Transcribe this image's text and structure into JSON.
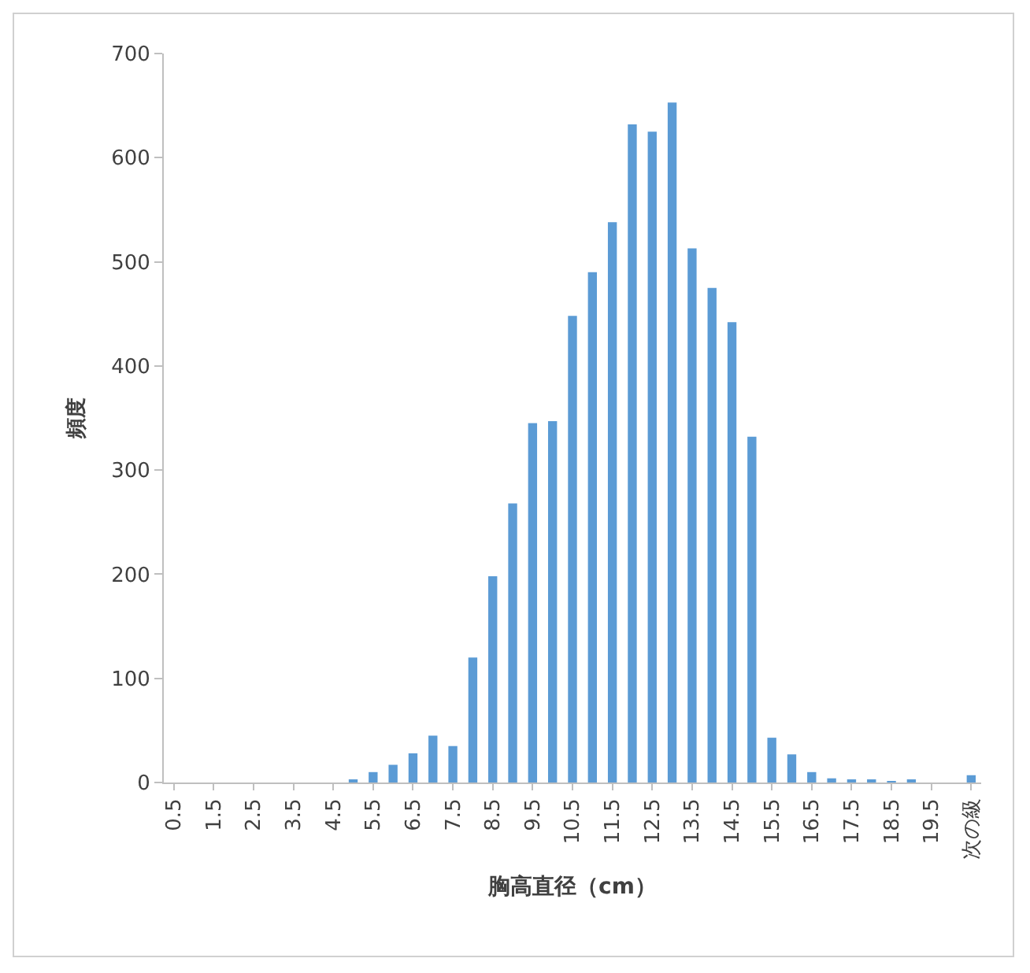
{
  "chart_data": {
    "type": "bar",
    "xlabel": "胸高直径（cm）",
    "ylabel": "頻度",
    "categories": [
      "0.5",
      null,
      "1.5",
      null,
      "2.5",
      null,
      "3.5",
      null,
      "4.5",
      null,
      "5.5",
      null,
      "6.5",
      null,
      "7.5",
      null,
      "8.5",
      null,
      "9.5",
      null,
      "10.5",
      null,
      "11.5",
      null,
      "12.5",
      null,
      "13.5",
      null,
      "14.5",
      null,
      "15.5",
      null,
      "16.5",
      null,
      "17.5",
      null,
      "18.5",
      null,
      "19.5",
      null,
      "次の級"
    ],
    "values": [
      0,
      0,
      0,
      0,
      0,
      0,
      0,
      0,
      0,
      3,
      10,
      17,
      28,
      45,
      35,
      120,
      198,
      268,
      345,
      347,
      448,
      490,
      538,
      632,
      625,
      653,
      513,
      475,
      442,
      332,
      43,
      27,
      10,
      4,
      2,
      2,
      1,
      2,
      0,
      0,
      7
    ],
    "color": "#5b9bd5",
    "ylim": [
      0,
      700
    ],
    "yticks": [
      0,
      100,
      200,
      300,
      400,
      500,
      600,
      700
    ],
    "grid": false,
    "legend": false
  }
}
